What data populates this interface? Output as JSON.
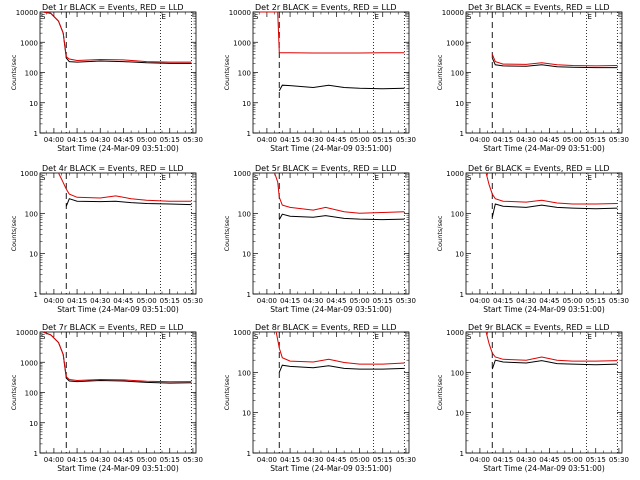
{
  "chart_data": [
    {
      "type": "line",
      "title": "Det  1r BLACK = Events, RED = LLD",
      "ylabel": "Counts/sec",
      "xlabel": "Start Time (24-Mar-09 03:51:00)",
      "x_ticks": [
        "04:00",
        "04:15",
        "04:30",
        "04:45",
        "05:00",
        "05:15",
        "05:30"
      ],
      "y_ticks": [
        "1",
        "10",
        "100",
        "1000",
        "10000"
      ],
      "y_scale": "log",
      "ylim": [
        1,
        10000
      ],
      "xlim": [
        "03:51",
        "05:32"
      ],
      "markers": [
        "S",
        "E"
      ],
      "dashed_vline": "04:08",
      "dotted_vlines": [
        "05:09",
        "05:29"
      ],
      "series": [
        {
          "color": "#000000",
          "x": [
            "03:53",
            "03:58",
            "04:03",
            "04:06",
            "04:08",
            "04:10",
            "04:15",
            "04:30",
            "04:45",
            "05:00",
            "05:15",
            "05:29"
          ],
          "values": [
            10000,
            9000,
            5000,
            2000,
            300,
            230,
            220,
            240,
            230,
            210,
            200,
            200
          ]
        },
        {
          "color": "#dd0000",
          "x": [
            "03:53",
            "03:58",
            "04:03",
            "04:06",
            "04:08",
            "04:10",
            "04:15",
            "04:30",
            "04:45",
            "05:00",
            "05:15",
            "05:29"
          ],
          "values": [
            10000,
            9000,
            5000,
            2000,
            330,
            280,
            250,
            270,
            260,
            230,
            220,
            220
          ]
        }
      ]
    },
    {
      "type": "line",
      "title": "Det  2r BLACK = Events, RED = LLD",
      "ylabel": "Counts/sec",
      "xlabel": "Start Time (24-Mar-09 03:51:00)",
      "x_ticks": [
        "04:00",
        "04:15",
        "04:30",
        "04:45",
        "05:00",
        "05:15",
        "05:30"
      ],
      "y_ticks": [
        "1",
        "10",
        "100",
        "1000",
        "10000"
      ],
      "y_scale": "log",
      "ylim": [
        1,
        10000
      ],
      "xlim": [
        "03:51",
        "05:32"
      ],
      "markers": [
        "S",
        "E"
      ],
      "dashed_vline": "04:08",
      "dotted_vlines": [
        "05:09",
        "05:29"
      ],
      "series": [
        {
          "color": "#000000",
          "x": [
            "04:08",
            "04:10",
            "04:15",
            "04:30",
            "04:40",
            "04:50",
            "05:00",
            "05:15",
            "05:29"
          ],
          "values": [
            25,
            38,
            37,
            32,
            38,
            32,
            30,
            29,
            30
          ]
        },
        {
          "color": "#dd0000",
          "x": [
            "03:55",
            "04:00",
            "04:05",
            "04:07",
            "04:08",
            "04:15",
            "04:30",
            "04:45",
            "05:00",
            "05:15",
            "05:29"
          ],
          "values": [
            10000,
            10000,
            10000,
            10000,
            450,
            450,
            440,
            440,
            440,
            450,
            450
          ]
        }
      ]
    },
    {
      "type": "line",
      "title": "Det  3r BLACK = Events, RED = LLD",
      "ylabel": "Counts/sec",
      "xlabel": "Start Time (24-Mar-09 03:51:00)",
      "x_ticks": [
        "04:00",
        "04:15",
        "04:30",
        "04:45",
        "05:00",
        "05:15",
        "05:30"
      ],
      "y_ticks": [
        "1",
        "10",
        "100",
        "1000",
        "10000"
      ],
      "y_scale": "log",
      "ylim": [
        1,
        10000
      ],
      "xlim": [
        "03:51",
        "05:32"
      ],
      "markers": [
        "S",
        "E"
      ],
      "dashed_vline": "04:08",
      "dotted_vlines": [
        "05:09",
        "05:29"
      ],
      "series": [
        {
          "color": "#000000",
          "x": [
            "04:08",
            "04:10",
            "04:15",
            "04:30",
            "04:40",
            "04:50",
            "05:00",
            "05:15",
            "05:29"
          ],
          "values": [
            300,
            180,
            165,
            160,
            180,
            155,
            150,
            145,
            145
          ]
        },
        {
          "color": "#dd0000",
          "x": [
            "04:08",
            "04:10",
            "04:15",
            "04:30",
            "04:40",
            "04:50",
            "05:00",
            "05:15",
            "05:29"
          ],
          "values": [
            400,
            230,
            190,
            185,
            210,
            180,
            170,
            165,
            170
          ]
        }
      ]
    },
    {
      "type": "line",
      "title": "Det  4r BLACK = Events, RED = LLD",
      "ylabel": "Counts/sec",
      "xlabel": "Start Time (24-Mar-09 03:51:00)",
      "x_ticks": [
        "04:00",
        "04:15",
        "04:30",
        "04:45",
        "05:00",
        "05:15",
        "05:30"
      ],
      "y_ticks": [
        "1",
        "10",
        "100",
        "1000"
      ],
      "y_scale": "log",
      "ylim": [
        1,
        1000
      ],
      "xlim": [
        "03:51",
        "05:32"
      ],
      "markers": [
        "S",
        "E"
      ],
      "dashed_vline": "04:08",
      "dotted_vlines": [
        "05:09",
        "05:29"
      ],
      "series": [
        {
          "color": "#000000",
          "x": [
            "04:08",
            "04:10",
            "04:15",
            "04:30",
            "04:40",
            "04:50",
            "05:00",
            "05:15",
            "05:29"
          ],
          "values": [
            150,
            230,
            200,
            195,
            200,
            185,
            175,
            170,
            165
          ]
        },
        {
          "color": "#dd0000",
          "x": [
            "04:03",
            "04:05",
            "04:08",
            "04:10",
            "04:15",
            "04:30",
            "04:40",
            "04:50",
            "05:00",
            "05:15",
            "05:29"
          ],
          "values": [
            1000,
            700,
            400,
            300,
            250,
            240,
            270,
            230,
            210,
            200,
            200
          ]
        }
      ]
    },
    {
      "type": "line",
      "title": "Det  5r BLACK = Events, RED = LLD",
      "ylabel": "Counts/sec",
      "xlabel": "Start Time (24-Mar-09 03:51:00)",
      "x_ticks": [
        "04:00",
        "04:15",
        "04:30",
        "04:45",
        "05:00",
        "05:15",
        "05:30"
      ],
      "y_ticks": [
        "1",
        "10",
        "100",
        "1000"
      ],
      "y_scale": "log",
      "ylim": [
        1,
        1000
      ],
      "xlim": [
        "03:51",
        "05:32"
      ],
      "markers": [
        "S",
        "E"
      ],
      "dashed_vline": "04:08",
      "dotted_vlines": [
        "05:09",
        "05:29"
      ],
      "series": [
        {
          "color": "#000000",
          "x": [
            "04:08",
            "04:10",
            "04:15",
            "04:30",
            "04:38",
            "04:50",
            "05:00",
            "05:15",
            "05:29"
          ],
          "values": [
            70,
            95,
            85,
            80,
            88,
            75,
            72,
            70,
            72
          ]
        },
        {
          "color": "#dd0000",
          "x": [
            "04:05",
            "04:07",
            "04:08",
            "04:10",
            "04:15",
            "04:30",
            "04:38",
            "04:50",
            "05:00",
            "05:15",
            "05:29"
          ],
          "values": [
            1000,
            600,
            250,
            160,
            140,
            120,
            140,
            110,
            100,
            105,
            110
          ]
        }
      ]
    },
    {
      "type": "line",
      "title": "Det  6r BLACK = Events, RED = LLD",
      "ylabel": "Counts/sec",
      "xlabel": "Start Time (24-Mar-09 03:51:00)",
      "x_ticks": [
        "04:00",
        "04:15",
        "04:30",
        "04:45",
        "05:00",
        "05:15",
        "05:30"
      ],
      "y_ticks": [
        "1",
        "10",
        "100",
        "1000"
      ],
      "y_scale": "log",
      "ylim": [
        1,
        1000
      ],
      "xlim": [
        "03:51",
        "05:32"
      ],
      "markers": [
        "S",
        "E"
      ],
      "dashed_vline": "04:08",
      "dotted_vlines": [
        "05:09",
        "05:29"
      ],
      "series": [
        {
          "color": "#000000",
          "x": [
            "04:08",
            "04:10",
            "04:15",
            "04:30",
            "04:40",
            "04:50",
            "05:00",
            "05:15",
            "05:29"
          ],
          "values": [
            80,
            170,
            150,
            140,
            160,
            140,
            135,
            130,
            135
          ]
        },
        {
          "color": "#dd0000",
          "x": [
            "04:04",
            "04:06",
            "04:08",
            "04:10",
            "04:15",
            "04:30",
            "04:40",
            "04:50",
            "05:00",
            "05:15",
            "05:29"
          ],
          "values": [
            1000,
            500,
            300,
            230,
            200,
            190,
            210,
            180,
            170,
            170,
            175
          ]
        }
      ]
    },
    {
      "type": "line",
      "title": "Det  7r BLACK = Events, RED = LLD",
      "ylabel": "Counts/sec",
      "xlabel": "Start Time (24-Mar-09 03:51:00)",
      "x_ticks": [
        "04:00",
        "04:15",
        "04:30",
        "04:45",
        "05:00",
        "05:15",
        "05:30"
      ],
      "y_ticks": [
        "1",
        "10",
        "100",
        "1000",
        "10000"
      ],
      "y_scale": "log",
      "ylim": [
        1,
        10000
      ],
      "xlim": [
        "03:51",
        "05:32"
      ],
      "markers": [
        "S",
        "E"
      ],
      "dashed_vline": "04:08",
      "dotted_vlines": [
        "05:09",
        "05:29"
      ],
      "series": [
        {
          "color": "#000000",
          "x": [
            "03:53",
            "03:58",
            "04:03",
            "04:06",
            "04:08",
            "04:10",
            "04:15",
            "04:30",
            "04:45",
            "05:00",
            "05:15",
            "05:29"
          ],
          "values": [
            10000,
            8000,
            4500,
            1800,
            300,
            240,
            230,
            250,
            240,
            215,
            205,
            210
          ]
        },
        {
          "color": "#dd0000",
          "x": [
            "03:53",
            "03:58",
            "04:03",
            "04:06",
            "04:08",
            "04:10",
            "04:15",
            "04:30",
            "04:45",
            "05:00",
            "05:15",
            "05:29"
          ],
          "values": [
            10000,
            8000,
            4500,
            1800,
            330,
            270,
            250,
            270,
            260,
            235,
            225,
            230
          ]
        }
      ]
    },
    {
      "type": "line",
      "title": "Det  8r BLACK = Events, RED = LLD",
      "ylabel": "Counts/sec",
      "xlabel": "Start Time (24-Mar-09 03:51:00)",
      "x_ticks": [
        "04:00",
        "04:15",
        "04:30",
        "04:45",
        "05:00",
        "05:15",
        "05:30"
      ],
      "y_ticks": [
        "1",
        "10",
        "100",
        "1000"
      ],
      "y_scale": "log",
      "ylim": [
        1,
        1000
      ],
      "xlim": [
        "03:51",
        "05:32"
      ],
      "markers": [
        "S",
        "E"
      ],
      "dashed_vline": "04:08",
      "dotted_vlines": [
        "05:09",
        "05:29"
      ],
      "series": [
        {
          "color": "#000000",
          "x": [
            "04:08",
            "04:10",
            "04:15",
            "04:30",
            "04:40",
            "04:50",
            "05:00",
            "05:15",
            "05:29"
          ],
          "values": [
            100,
            150,
            140,
            130,
            145,
            125,
            120,
            120,
            125
          ]
        },
        {
          "color": "#dd0000",
          "x": [
            "04:06",
            "04:08",
            "04:10",
            "04:15",
            "04:30",
            "04:40",
            "04:50",
            "05:00",
            "05:15",
            "05:29"
          ],
          "values": [
            1000,
            400,
            230,
            190,
            180,
            210,
            175,
            160,
            160,
            170
          ]
        }
      ]
    },
    {
      "type": "line",
      "title": "Det  9r BLACK = Events, RED = LLD",
      "ylabel": "Counts/sec",
      "xlabel": "Start Time (24-Mar-09 03:51:00)",
      "x_ticks": [
        "04:00",
        "04:15",
        "04:30",
        "04:45",
        "05:00",
        "05:15",
        "05:30"
      ],
      "y_ticks": [
        "1",
        "10",
        "100",
        "1000"
      ],
      "y_scale": "log",
      "ylim": [
        1,
        1000
      ],
      "xlim": [
        "03:51",
        "05:32"
      ],
      "markers": [
        "S",
        "E"
      ],
      "dashed_vline": "04:08",
      "dotted_vlines": [
        "05:09",
        "05:29"
      ],
      "series": [
        {
          "color": "#000000",
          "x": [
            "04:08",
            "04:10",
            "04:15",
            "04:30",
            "04:40",
            "04:50",
            "05:00",
            "05:15",
            "05:29"
          ],
          "values": [
            120,
            200,
            180,
            170,
            195,
            165,
            160,
            155,
            160
          ]
        },
        {
          "color": "#dd0000",
          "x": [
            "04:04",
            "04:06",
            "04:08",
            "04:10",
            "04:15",
            "04:30",
            "04:40",
            "04:50",
            "05:00",
            "05:15",
            "05:29"
          ],
          "values": [
            1000,
            500,
            300,
            240,
            210,
            200,
            240,
            200,
            190,
            190,
            195
          ]
        }
      ]
    }
  ]
}
